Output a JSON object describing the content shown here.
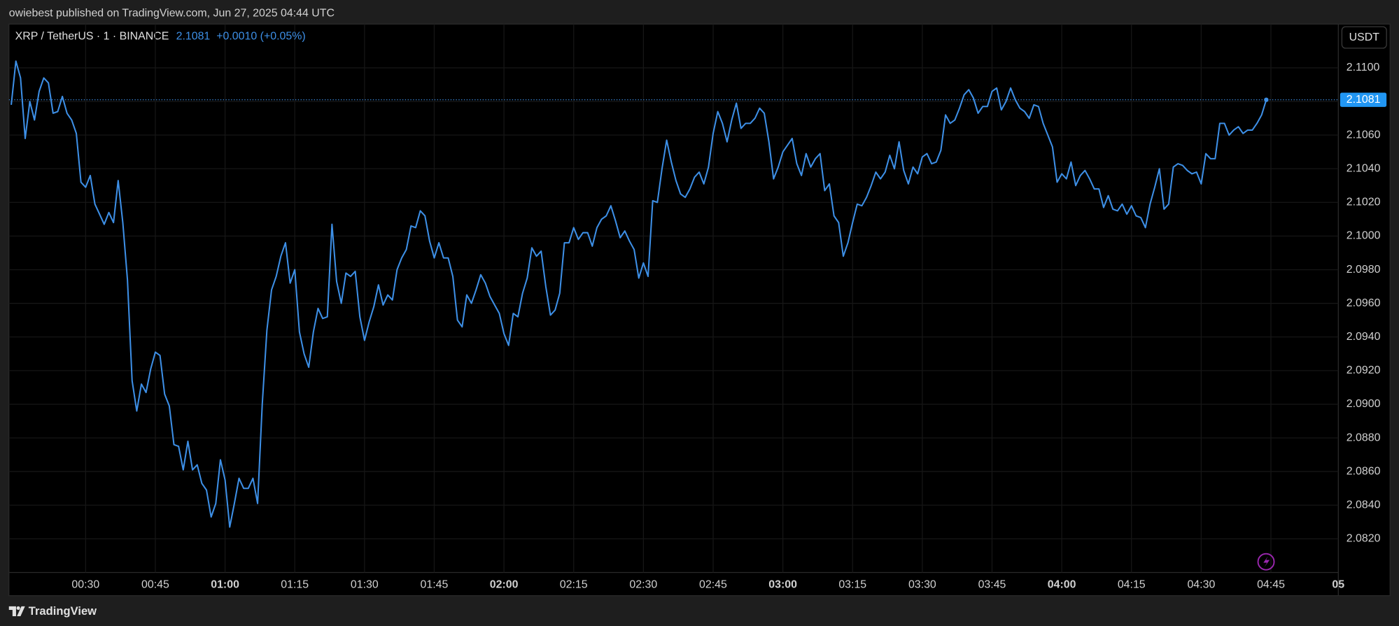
{
  "attribution": "owiebest published on TradingView.com, Jun 27, 2025 04:44 UTC",
  "brand": "TradingView",
  "chart_data": {
    "type": "line",
    "title": "XRP / TetherUS · 1 · BINANCE",
    "change": "+0.0010 (+0.05%)",
    "currency": "USDT",
    "color": "#3d8fe6",
    "grid": true,
    "xlim": [
      13.5,
      299.5
    ],
    "ylim": [
      2.08,
      2.1126
    ],
    "xticks": [
      {
        "value": 30,
        "label": "00:30"
      },
      {
        "value": 45,
        "label": "00:45"
      },
      {
        "value": 60,
        "label": "01:00"
      },
      {
        "value": 75,
        "label": "01:15"
      },
      {
        "value": 90,
        "label": "01:30"
      },
      {
        "value": 105,
        "label": "01:45"
      },
      {
        "value": 120,
        "label": "02:00"
      },
      {
        "value": 135,
        "label": "02:15"
      },
      {
        "value": 150,
        "label": "02:30"
      },
      {
        "value": 165,
        "label": "02:45"
      },
      {
        "value": 180,
        "label": "03:00"
      },
      {
        "value": 195,
        "label": "03:15"
      },
      {
        "value": 210,
        "label": "03:30"
      },
      {
        "value": 225,
        "label": "03:45"
      },
      {
        "value": 240,
        "label": "04:00"
      },
      {
        "value": 255,
        "label": "04:15"
      },
      {
        "value": 270,
        "label": "04:30"
      },
      {
        "value": 285,
        "label": "04:45"
      },
      {
        "value": 300,
        "label": "05"
      }
    ],
    "yticks": [
      {
        "value": 2.082,
        "label": "2.0820"
      },
      {
        "value": 2.084,
        "label": "2.0840"
      },
      {
        "value": 2.086,
        "label": "2.0860"
      },
      {
        "value": 2.088,
        "label": "2.0880"
      },
      {
        "value": 2.09,
        "label": "2.0900"
      },
      {
        "value": 2.092,
        "label": "2.0920"
      },
      {
        "value": 2.094,
        "label": "2.0940"
      },
      {
        "value": 2.096,
        "label": "2.0960"
      },
      {
        "value": 2.098,
        "label": "2.0980"
      },
      {
        "value": 2.1,
        "label": "2.1000"
      },
      {
        "value": 2.102,
        "label": "2.1020"
      },
      {
        "value": 2.104,
        "label": "2.1040"
      },
      {
        "value": 2.106,
        "label": "2.1060"
      },
      {
        "value": 2.108,
        "label": "2.1080"
      },
      {
        "value": 2.11,
        "label": "2.1100"
      }
    ],
    "x": [
      14,
      15,
      16,
      17,
      18,
      19,
      20,
      21,
      22,
      23,
      24,
      25,
      26,
      27,
      28,
      29,
      30,
      31,
      32,
      33,
      34,
      35,
      36,
      37,
      38,
      39,
      40,
      41,
      42,
      43,
      44,
      45,
      46,
      47,
      48,
      49,
      50,
      51,
      52,
      53,
      54,
      55,
      56,
      57,
      58,
      59,
      60,
      61,
      62,
      63,
      64,
      65,
      66,
      67,
      68,
      69,
      70,
      71,
      72,
      73,
      74,
      75,
      76,
      77,
      78,
      79,
      80,
      81,
      82,
      83,
      84,
      85,
      86,
      87,
      88,
      89,
      90,
      91,
      92,
      93,
      94,
      95,
      96,
      97,
      98,
      99,
      100,
      101,
      102,
      103,
      104,
      105,
      106,
      107,
      108,
      109,
      110,
      111,
      112,
      113,
      114,
      115,
      116,
      117,
      118,
      119,
      120,
      121,
      122,
      123,
      124,
      125,
      126,
      127,
      128,
      129,
      130,
      131,
      132,
      133,
      134,
      135,
      136,
      137,
      138,
      139,
      140,
      141,
      142,
      143,
      144,
      145,
      146,
      147,
      148,
      149,
      150,
      151,
      152,
      153,
      154,
      155,
      156,
      157,
      158,
      159,
      160,
      161,
      162,
      163,
      164,
      165,
      166,
      167,
      168,
      169,
      170,
      171,
      172,
      173,
      174,
      175,
      176,
      177,
      178,
      179,
      180,
      181,
      182,
      183,
      184,
      185,
      186,
      187,
      188,
      189,
      190,
      191,
      192,
      193,
      194,
      195,
      196,
      197,
      198,
      199,
      200,
      201,
      202,
      203,
      204,
      205,
      206,
      207,
      208,
      209,
      210,
      211,
      212,
      213,
      214,
      215,
      216,
      217,
      218,
      219,
      220,
      221,
      222,
      223,
      224,
      225,
      226,
      227,
      228,
      229,
      230,
      231,
      232,
      233,
      234,
      235,
      236,
      237,
      238,
      239,
      240,
      241,
      242,
      243,
      244,
      245,
      246,
      247,
      248,
      249,
      250,
      251,
      252,
      253,
      254,
      255,
      256,
      257,
      258,
      259,
      260,
      261,
      262,
      263,
      264,
      265,
      266,
      267,
      268,
      269,
      270,
      271,
      272,
      273,
      274,
      275,
      276,
      277,
      278,
      279,
      280,
      281,
      282,
      283,
      284
    ],
    "values": [
      2.1078,
      2.1104,
      2.1094,
      2.1058,
      2.108,
      2.1069,
      2.1086,
      2.1094,
      2.1091,
      2.1073,
      2.1074,
      2.1083,
      2.1073,
      2.1069,
      2.1061,
      2.1032,
      2.1029,
      2.1036,
      2.1019,
      2.1013,
      2.1007,
      2.1014,
      2.1008,
      2.1033,
      2.1008,
      2.0974,
      2.0914,
      2.0896,
      2.0912,
      2.0907,
      2.0921,
      2.0931,
      2.0929,
      2.0906,
      2.0899,
      2.0876,
      2.0875,
      2.0861,
      2.0878,
      2.0861,
      2.0864,
      2.0853,
      2.0849,
      2.0833,
      2.0841,
      2.0867,
      2.0855,
      2.0827,
      2.0841,
      2.0856,
      2.085,
      2.085,
      2.0856,
      2.0841,
      2.09,
      2.0944,
      2.0968,
      2.0976,
      2.0988,
      2.0996,
      2.0972,
      2.098,
      2.0943,
      2.093,
      2.0922,
      2.0943,
      2.0957,
      2.0951,
      2.0952,
      2.1007,
      2.0973,
      2.096,
      2.0978,
      2.0976,
      2.0979,
      2.0952,
      2.0938,
      2.0949,
      2.0958,
      2.0971,
      2.0959,
      2.0965,
      2.0962,
      2.098,
      2.0987,
      2.0992,
      2.1006,
      2.1005,
      2.1015,
      2.1012,
      2.0997,
      2.0987,
      2.0996,
      2.0987,
      2.0987,
      2.0976,
      2.095,
      2.0946,
      2.0965,
      2.096,
      2.0968,
      2.0977,
      2.0972,
      2.0964,
      2.0959,
      2.0954,
      2.0942,
      2.0935,
      2.0954,
      2.0952,
      2.0966,
      2.0975,
      2.0993,
      2.0988,
      2.0991,
      2.097,
      2.0953,
      2.0956,
      2.0966,
      2.0996,
      2.0996,
      2.1005,
      2.0998,
      2.1002,
      2.1002,
      2.0994,
      2.1005,
      2.101,
      2.1012,
      2.1018,
      2.1009,
      2.0999,
      2.1003,
      2.0997,
      2.0992,
      2.0975,
      2.0984,
      2.0976,
      2.1021,
      2.102,
      2.104,
      2.1057,
      2.1044,
      2.1033,
      2.1025,
      2.1023,
      2.1028,
      2.1035,
      2.1038,
      2.1031,
      2.1041,
      2.1061,
      2.1074,
      2.1067,
      2.1056,
      2.1069,
      2.1079,
      2.1064,
      2.1067,
      2.1067,
      2.107,
      2.1076,
      2.1073,
      2.1056,
      2.1034,
      2.1041,
      2.105,
      2.1054,
      2.1058,
      2.1043,
      2.1036,
      2.1049,
      2.1041,
      2.1046,
      2.1049,
      2.1027,
      2.1031,
      2.1012,
      2.1008,
      2.0988,
      2.0996,
      2.1008,
      2.1019,
      2.1018,
      2.1023,
      2.103,
      2.1038,
      2.1034,
      2.1038,
      2.1048,
      2.104,
      2.1056,
      2.1039,
      2.1031,
      2.1041,
      2.1037,
      2.1047,
      2.1049,
      2.1043,
      2.1044,
      2.1051,
      2.1072,
      2.1067,
      2.1069,
      2.1076,
      2.1084,
      2.1087,
      2.1082,
      2.1073,
      2.1077,
      2.1077,
      2.1086,
      2.1088,
      2.1075,
      2.108,
      2.1088,
      2.1081,
      2.1076,
      2.1074,
      2.107,
      2.1078,
      2.1077,
      2.1067,
      2.106,
      2.1053,
      2.1032,
      2.1037,
      2.1034,
      2.1044,
      2.103,
      2.1036,
      2.1039,
      2.1034,
      2.1028,
      2.1028,
      2.1017,
      2.1024,
      2.1016,
      2.1015,
      2.1019,
      2.1013,
      2.1018,
      2.1012,
      2.1011,
      2.1005,
      2.1019,
      2.1029,
      2.104,
      2.1016,
      2.1019,
      2.1041,
      2.1043,
      2.1042,
      2.1039,
      2.1037,
      2.1038,
      2.1031,
      2.1049,
      2.1046,
      2.1046,
      2.1067,
      2.1067,
      2.106,
      2.1063,
      2.1065,
      2.1061,
      2.1063,
      2.1063,
      2.1067,
      2.1072,
      2.1081
    ]
  }
}
